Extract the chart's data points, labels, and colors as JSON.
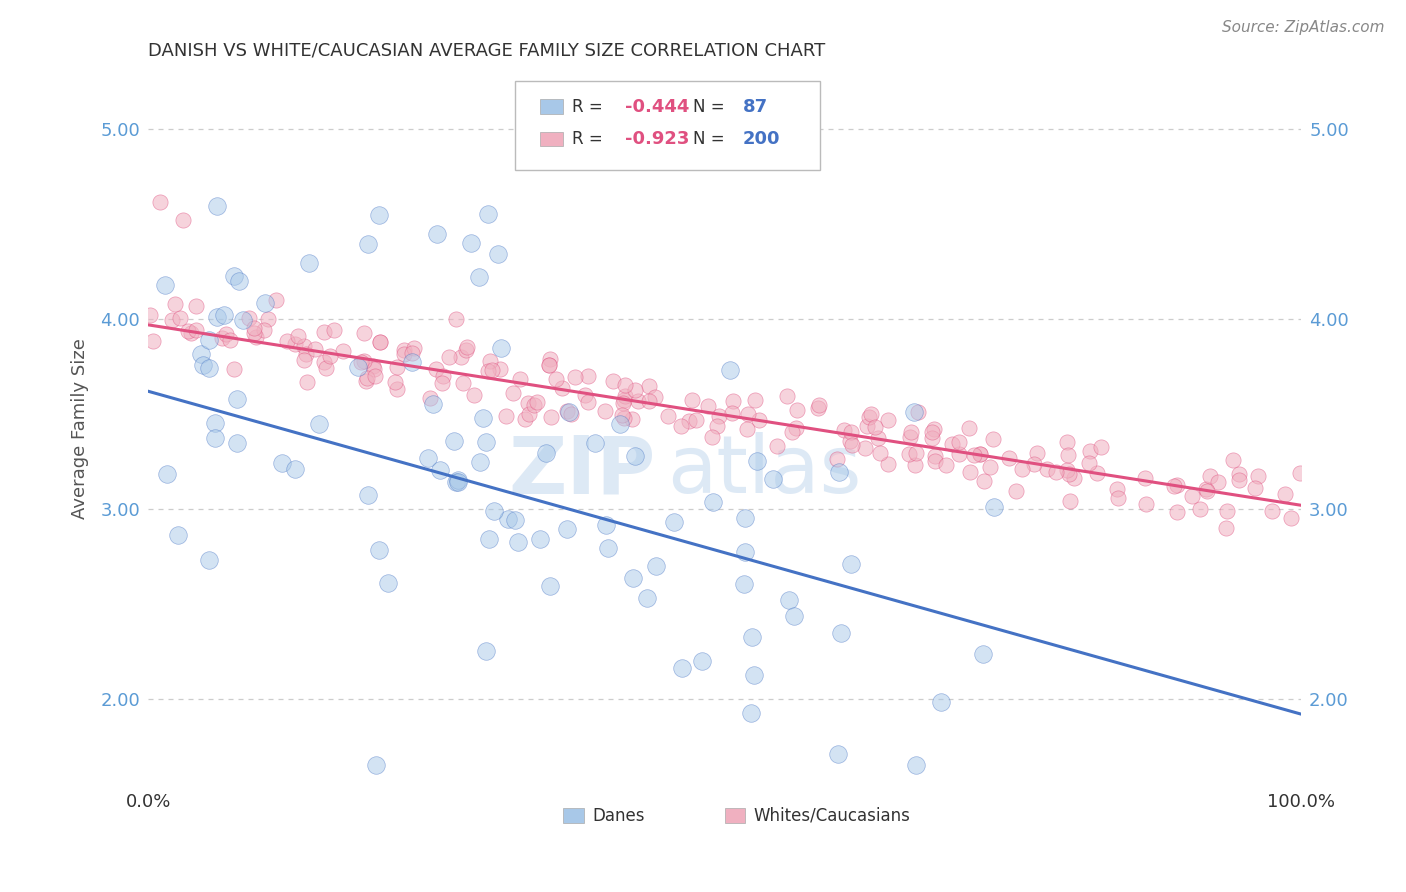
{
  "title": "DANISH VS WHITE/CAUCASIAN AVERAGE FAMILY SIZE CORRELATION CHART",
  "source": "Source: ZipAtlas.com",
  "ylabel": "Average Family Size",
  "xlim": [
    0.0,
    1.0
  ],
  "ylim": [
    1.55,
    5.3
  ],
  "yticks": [
    2.0,
    3.0,
    4.0,
    5.0
  ],
  "legend_labels": [
    "Danes",
    "Whites/Caucasians"
  ],
  "blue_color": "#A8C8E8",
  "pink_color": "#F0B0C0",
  "blue_line_color": "#4472C4",
  "pink_line_color": "#E05080",
  "R_danes": "-0.444",
  "N_danes": "87",
  "R_whites": "-0.923",
  "N_whites": "200",
  "watermark_zip": "ZIP",
  "watermark_atlas": "atlas",
  "background_color": "#FFFFFF",
  "grid_color": "#CCCCCC",
  "legend_text_color": "#4472C4",
  "legend_r_color": "#E05080",
  "title_color": "#333333",
  "ylabel_color": "#555555",
  "ytick_color": "#5B9BD5",
  "source_color": "#888888",
  "dane_trend_x0": 0.0,
  "dane_trend_y0": 3.62,
  "dane_trend_x1": 1.0,
  "dane_trend_y1": 1.92,
  "white_trend_x0": 0.0,
  "white_trend_y0": 3.97,
  "white_trend_x1": 1.0,
  "white_trend_y1": 3.02
}
